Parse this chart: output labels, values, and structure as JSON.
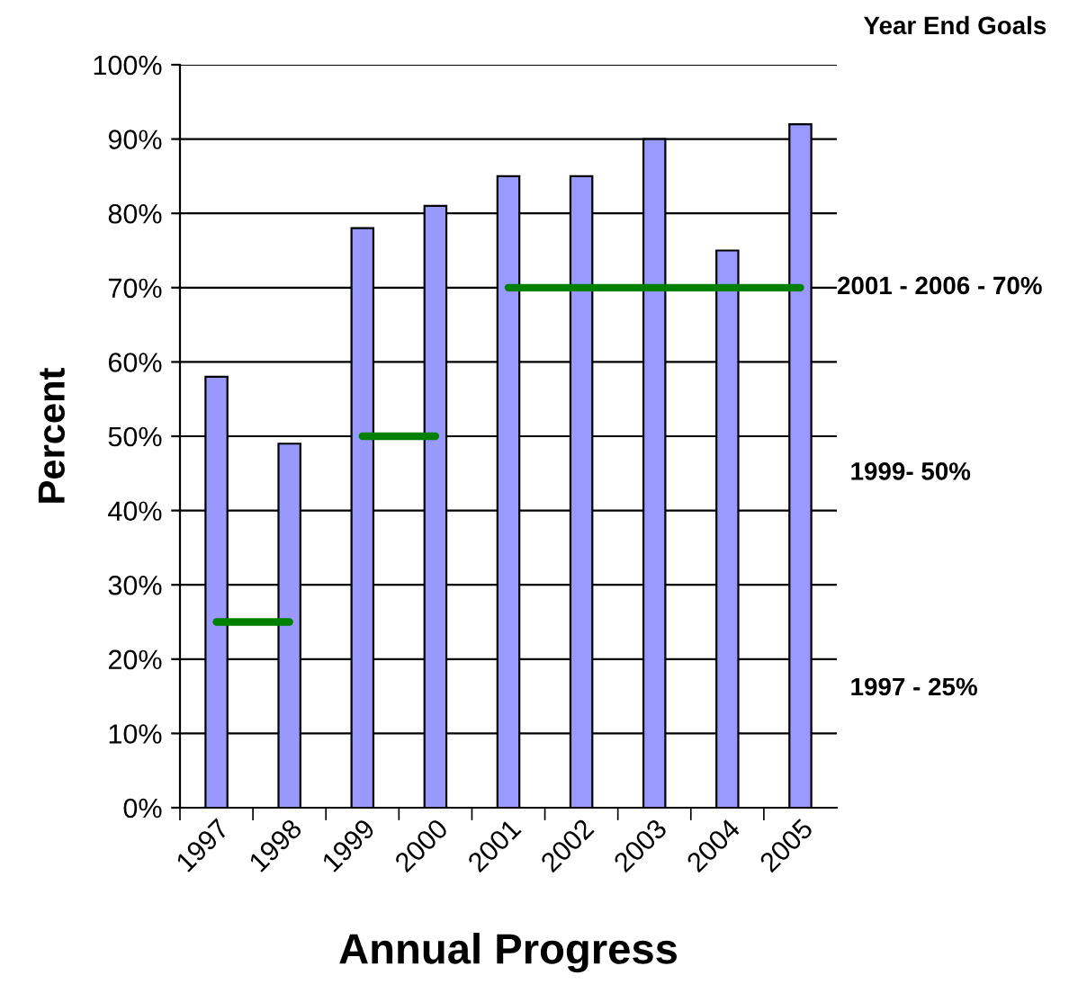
{
  "chart_data": {
    "type": "bar",
    "xlabel": "Annual Progress",
    "ylabel": "Percent",
    "categories": [
      "1997",
      "1998",
      "1999",
      "2000",
      "2001",
      "2002",
      "2003",
      "2004",
      "2005"
    ],
    "series": [
      {
        "color": "#9999ff",
        "values": [
          58,
          49,
          78,
          81,
          85,
          85,
          90,
          75,
          92
        ]
      },
      {
        "type": "line",
        "color": "#008000",
        "values": [
          25,
          25,
          null,
          null,
          null,
          null,
          null,
          null,
          null
        ]
      },
      {
        "type": "line",
        "color": "#008000",
        "values": [
          null,
          null,
          50,
          50,
          null,
          null,
          null,
          null,
          null
        ]
      },
      {
        "type": "line",
        "color": "#008000",
        "values": [
          null,
          null,
          null,
          null,
          70,
          70,
          70,
          70,
          70
        ]
      }
    ],
    "annotations": [
      "Year End Goals",
      "2001 - 2006 - 70%",
      "1999- 50%",
      "1997 - 25%"
    ],
    "ylim": [
      0,
      100
    ],
    "yticks": [
      {
        "value": 0,
        "label": "0%"
      },
      {
        "value": 10,
        "label": "10%"
      },
      {
        "value": 20,
        "label": "20%"
      },
      {
        "value": 30,
        "label": "30%"
      },
      {
        "value": 40,
        "label": "40%"
      },
      {
        "value": 50,
        "label": "50%"
      },
      {
        "value": 60,
        "label": "60%"
      },
      {
        "value": 70,
        "label": "70%"
      },
      {
        "value": 80,
        "label": "80%"
      },
      {
        "value": 90,
        "label": "90%"
      },
      {
        "value": 100,
        "label": "100%"
      }
    ],
    "grid": "y",
    "legend": false,
    "marker": "none",
    "line_style": "solid"
  }
}
